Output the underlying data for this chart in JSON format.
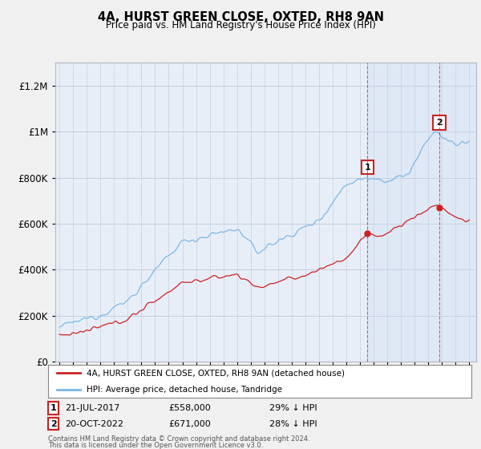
{
  "title": "4A, HURST GREEN CLOSE, OXTED, RH8 9AN",
  "subtitle": "Price paid vs. HM Land Registry's House Price Index (HPI)",
  "ylim": [
    0,
    1300000
  ],
  "hpi_color": "#7ab8e8",
  "price_color": "#cc2222",
  "marker1_date": 2017.55,
  "marker1_price": 558000,
  "marker2_date": 2022.8,
  "marker2_price": 671000,
  "legend_property_label": "4A, HURST GREEN CLOSE, OXTED, RH8 9AN (detached house)",
  "legend_hpi_label": "HPI: Average price, detached house, Tandridge",
  "footer_line1": "Contains HM Land Registry data © Crown copyright and database right 2024.",
  "footer_line2": "This data is licensed under the Open Government Licence v3.0.",
  "table_row1": [
    "1",
    "21-JUL-2017",
    "£558,000",
    "29% ↓ HPI"
  ],
  "table_row2": [
    "2",
    "20-OCT-2022",
    "£671,000",
    "28% ↓ HPI"
  ],
  "background_color": "#f0f0f0",
  "plot_bg_color": "#e8eef8",
  "shade_color": "#d0dff5"
}
